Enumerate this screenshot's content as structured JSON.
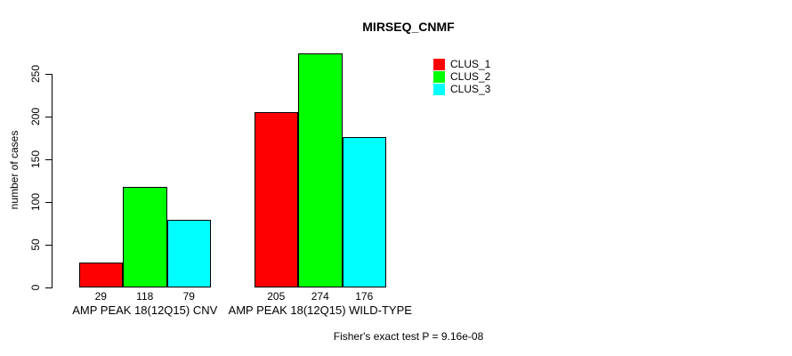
{
  "page": {
    "title": "MIRSEQ_CNMF",
    "footer": "Fisher's exact test P = 9.16e-08"
  },
  "chart_data": {
    "type": "bar",
    "title": "MIRSEQ_CNMF",
    "xlabel": "",
    "ylabel": "number of cases",
    "categories": [
      "AMP PEAK 18(12Q15) CNV",
      "AMP PEAK 18(12Q15) WILD-TYPE"
    ],
    "series": [
      {
        "name": "CLUS_1",
        "color": "#ff0000",
        "values": [
          29,
          205
        ]
      },
      {
        "name": "CLUS_2",
        "color": "#00ff00",
        "values": [
          118,
          274
        ]
      },
      {
        "name": "CLUS_3",
        "color": "#00ffff",
        "values": [
          79,
          176
        ]
      }
    ],
    "yticks": [
      0,
      50,
      100,
      150,
      200,
      250
    ],
    "ylim": [
      0,
      274
    ],
    "grid": false,
    "show_bar_value_labels": true,
    "legend_position": "top-right",
    "bar_border_color": "#000000",
    "annotation": "Fisher's exact test P = 9.16e-08"
  }
}
